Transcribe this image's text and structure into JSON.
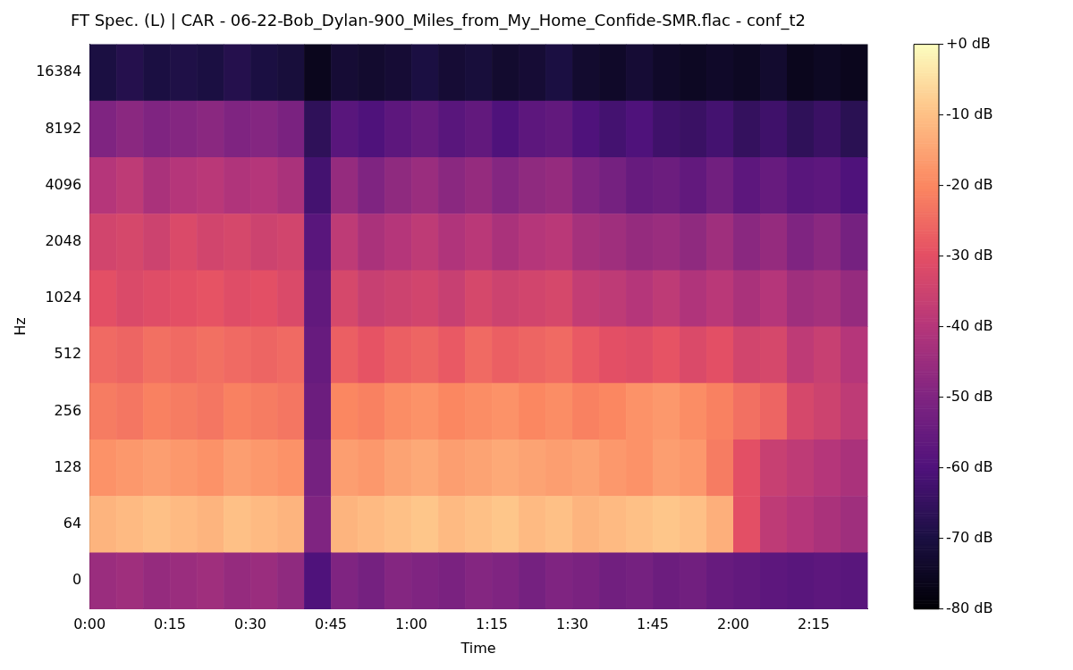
{
  "chart_data": {
    "type": "heatmap",
    "title": "FT Spec. (L) | CAR - 06-22-Bob_Dylan-900_Miles_from_My_Home_Confide-SMR.flac - conf_t2",
    "xlabel": "Time",
    "ylabel": "Hz",
    "x": [
      2.5,
      7.5,
      12.5,
      17.5,
      22.5,
      27.5,
      32.5,
      37.5,
      42.5,
      47.5,
      52.5,
      57.5,
      62.5,
      67.5,
      72.5,
      77.5,
      82.5,
      87.5,
      92.5,
      97.5,
      102.5,
      107.5,
      112.5,
      117.5,
      122.5,
      127.5,
      132.5,
      137.5,
      142.5
    ],
    "xlim": [
      0,
      145
    ],
    "xticks": [
      {
        "value": 0,
        "label": "0:00"
      },
      {
        "value": 15,
        "label": "0:15"
      },
      {
        "value": 30,
        "label": "0:30"
      },
      {
        "value": 45,
        "label": "0:45"
      },
      {
        "value": 60,
        "label": "1:00"
      },
      {
        "value": 75,
        "label": "1:15"
      },
      {
        "value": 90,
        "label": "1:30"
      },
      {
        "value": 105,
        "label": "1:45"
      },
      {
        "value": 120,
        "label": "2:00"
      },
      {
        "value": 135,
        "label": "2:15"
      }
    ],
    "y_categories": [
      "16384",
      "8192",
      "4096",
      "2048",
      "1024",
      "512",
      "256",
      "128",
      "64",
      "0"
    ],
    "cells": [
      [
        -70,
        -68,
        -70,
        -69,
        -70,
        -68,
        -70,
        -71,
        -76,
        -72,
        -73,
        -72,
        -70,
        -72,
        -71,
        -73,
        -72,
        -70,
        -73,
        -74,
        -72,
        -74,
        -75,
        -74,
        -75,
        -73,
        -76,
        -75,
        -76
      ],
      [
        -50,
        -48,
        -50,
        -49,
        -48,
        -50,
        -49,
        -51,
        -66,
        -58,
        -60,
        -57,
        -55,
        -58,
        -56,
        -60,
        -57,
        -56,
        -60,
        -62,
        -60,
        -63,
        -64,
        -62,
        -65,
        -63,
        -66,
        -64,
        -67
      ],
      [
        -40,
        -38,
        -42,
        -40,
        -39,
        -41,
        -40,
        -42,
        -62,
        -46,
        -50,
        -47,
        -45,
        -48,
        -46,
        -49,
        -47,
        -46,
        -50,
        -52,
        -55,
        -54,
        -56,
        -53,
        -57,
        -55,
        -58,
        -57,
        -60
      ],
      [
        -34,
        -33,
        -35,
        -32,
        -34,
        -33,
        -35,
        -34,
        -58,
        -38,
        -42,
        -40,
        -38,
        -41,
        -39,
        -42,
        -40,
        -39,
        -43,
        -44,
        -46,
        -45,
        -47,
        -44,
        -48,
        -46,
        -50,
        -48,
        -52
      ],
      [
        -30,
        -32,
        -31,
        -30,
        -29,
        -31,
        -30,
        -32,
        -56,
        -33,
        -36,
        -35,
        -34,
        -36,
        -33,
        -35,
        -34,
        -33,
        -37,
        -38,
        -40,
        -38,
        -41,
        -39,
        -42,
        -40,
        -44,
        -43,
        -46
      ],
      [
        -25,
        -26,
        -24,
        -25,
        -24,
        -25,
        -26,
        -25,
        -55,
        -27,
        -29,
        -27,
        -26,
        -28,
        -25,
        -27,
        -26,
        -25,
        -28,
        -30,
        -31,
        -29,
        -32,
        -30,
        -34,
        -33,
        -38,
        -36,
        -40
      ],
      [
        -22,
        -23,
        -21,
        -22,
        -23,
        -21,
        -22,
        -23,
        -54,
        -20,
        -21,
        -19,
        -18,
        -20,
        -19,
        -18,
        -20,
        -19,
        -21,
        -20,
        -18,
        -17,
        -19,
        -21,
        -24,
        -26,
        -33,
        -35,
        -38
      ],
      [
        -18,
        -17,
        -16,
        -17,
        -18,
        -16,
        -17,
        -18,
        -52,
        -16,
        -17,
        -15,
        -14,
        -16,
        -15,
        -14,
        -15,
        -16,
        -15,
        -17,
        -18,
        -16,
        -17,
        -22,
        -30,
        -36,
        -38,
        -40,
        -42
      ],
      [
        -12,
        -11,
        -10,
        -11,
        -12,
        -10,
        -11,
        -12,
        -50,
        -12,
        -11,
        -10,
        -9,
        -11,
        -10,
        -9,
        -11,
        -10,
        -12,
        -11,
        -10,
        -9,
        -10,
        -13,
        -30,
        -38,
        -40,
        -42,
        -44
      ],
      [
        -45,
        -44,
        -46,
        -45,
        -44,
        -46,
        -45,
        -47,
        -60,
        -50,
        -52,
        -49,
        -50,
        -51,
        -49,
        -50,
        -52,
        -50,
        -51,
        -53,
        -52,
        -54,
        -53,
        -55,
        -56,
        -57,
        -58,
        -57,
        -58
      ]
    ],
    "clim": [
      -80,
      0
    ],
    "cticks": [
      {
        "value": 0,
        "label": "+0 dB"
      },
      {
        "value": -10,
        "label": "-10 dB"
      },
      {
        "value": -20,
        "label": "-20 dB"
      },
      {
        "value": -30,
        "label": "-30 dB"
      },
      {
        "value": -40,
        "label": "-40 dB"
      },
      {
        "value": -50,
        "label": "-50 dB"
      },
      {
        "value": -60,
        "label": "-60 dB"
      },
      {
        "value": -70,
        "label": "-70 dB"
      },
      {
        "value": -80,
        "label": "-80 dB"
      }
    ]
  }
}
